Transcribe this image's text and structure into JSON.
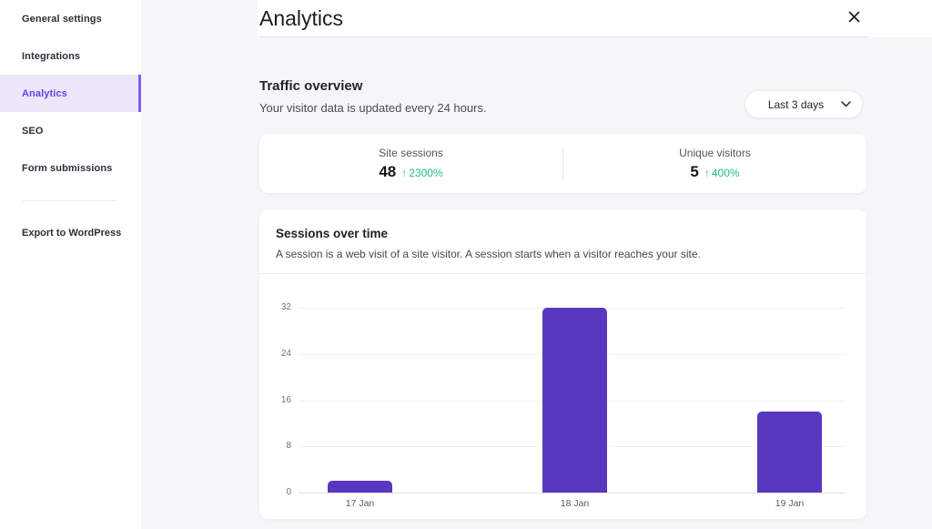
{
  "sidebar": {
    "items": [
      {
        "label": "General settings",
        "active": false
      },
      {
        "label": "Integrations",
        "active": false
      },
      {
        "label": "Analytics",
        "active": true
      },
      {
        "label": "SEO",
        "active": false
      },
      {
        "label": "Form submissions",
        "active": false
      }
    ],
    "footer_item": {
      "label": "Export to WordPress"
    }
  },
  "header": {
    "title": "Analytics",
    "close_icon": "x-icon"
  },
  "traffic_overview": {
    "heading": "Traffic overview",
    "subheading": "Your visitor data is updated every 24 hours.",
    "range_selector": {
      "value": "Last 3 days",
      "icon": "chevron-down-icon"
    }
  },
  "stats": [
    {
      "label": "Site sessions",
      "value": "48",
      "delta": "2300%",
      "direction": "up"
    },
    {
      "label": "Unique visitors",
      "value": "5",
      "delta": "400%",
      "direction": "up"
    }
  ],
  "chart_card": {
    "title": "Sessions over time",
    "description": "A session is a web visit of a site visitor. A session starts when a visitor reaches your site."
  },
  "chart_data": {
    "type": "bar",
    "categories": [
      "17 Jan",
      "18 Jan",
      "19 Jan"
    ],
    "values": [
      2,
      32,
      14
    ],
    "title": "Sessions over time",
    "xlabel": "",
    "ylabel": "",
    "ylim": [
      0,
      32
    ],
    "yticks": [
      0,
      8,
      16,
      24,
      32
    ],
    "grid": true,
    "legend": false,
    "bar_color": "#5838bf"
  },
  "colors": {
    "accent_purple": "#5838bf",
    "active_nav_text": "#6940e8",
    "active_nav_bg": "#ece7fb",
    "positive_green": "#25b892",
    "page_background": "#f5f6f9"
  }
}
